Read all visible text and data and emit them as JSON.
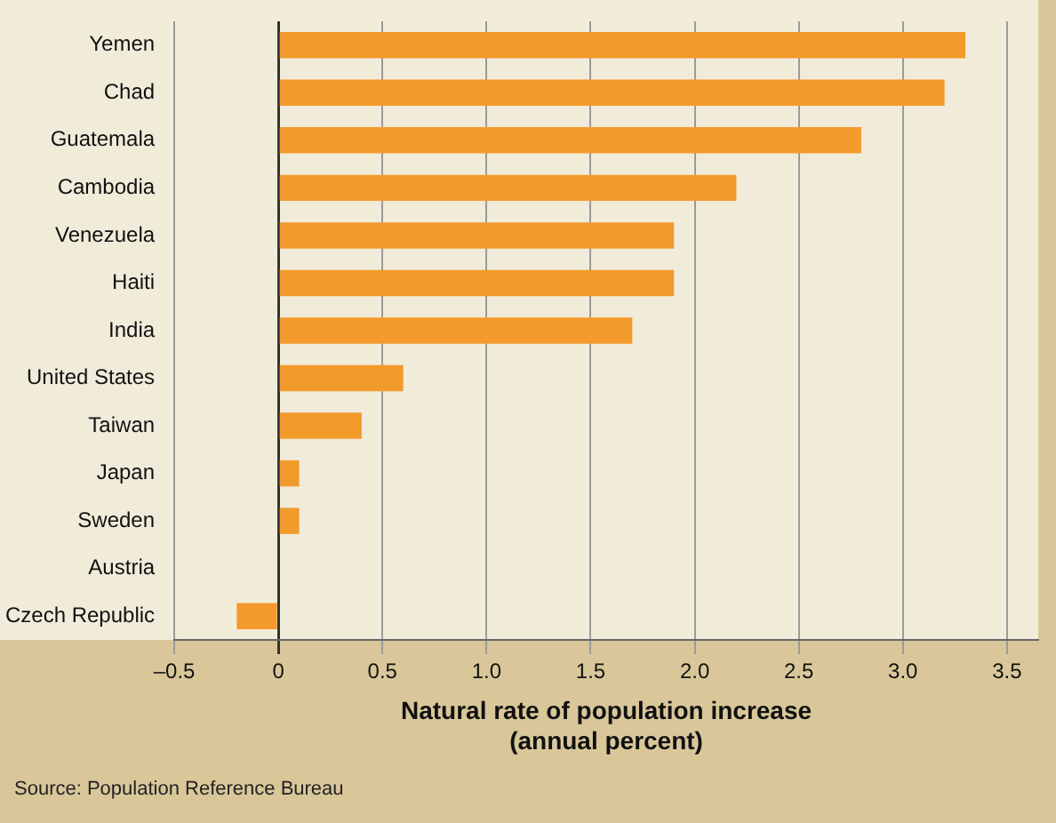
{
  "chart_data": {
    "type": "bar",
    "orientation": "horizontal",
    "categories": [
      "Yemen",
      "Chad",
      "Guatemala",
      "Cambodia",
      "Venezuela",
      "Haiti",
      "India",
      "United States",
      "Taiwan",
      "Japan",
      "Sweden",
      "Austria",
      "Czech Republic"
    ],
    "values": [
      3.3,
      3.2,
      2.8,
      2.2,
      1.9,
      1.9,
      1.7,
      0.6,
      0.4,
      0.1,
      0.1,
      0.0,
      -0.2
    ],
    "color": "#f39a2c",
    "xlabel": "Natural rate of population increase\n(annual percent)",
    "xlim": [
      -0.5,
      3.65
    ],
    "xticks": [
      {
        "value": -0.5,
        "label": "–0.5"
      },
      0,
      0.5,
      {
        "value": 1,
        "label": "1.0"
      },
      1.5,
      {
        "value": 2,
        "label": "2.0"
      },
      2.5,
      {
        "value": 3,
        "label": "3.0"
      },
      3.5
    ],
    "grid": "x",
    "legend": false,
    "annotations": [
      "Source:  Population Reference Bureau"
    ]
  }
}
